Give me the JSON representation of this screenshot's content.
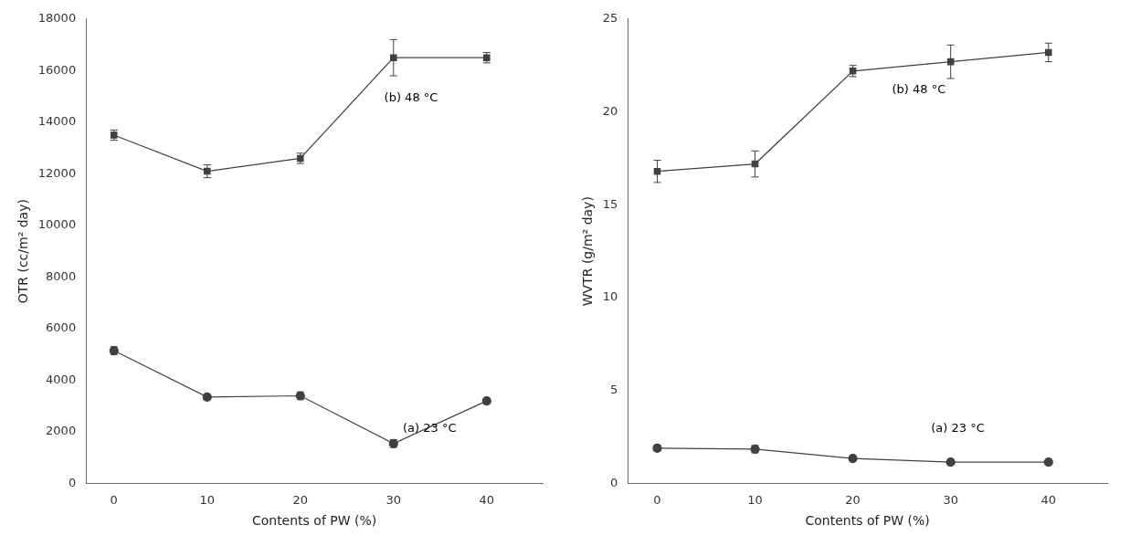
{
  "chart_data": [
    {
      "type": "line",
      "x_label": "Contents of PW (%)",
      "y_label": "OTR (cc/m² day)",
      "x": [
        0,
        10,
        20,
        30,
        40
      ],
      "series": [
        {
          "color": "#404040",
          "marker": "square",
          "line_style": "solid",
          "values": [
            13500,
            12100,
            12600,
            16500,
            16500
          ],
          "errors": [
            200,
            250,
            200,
            700,
            200
          ]
        },
        {
          "color": "#404040",
          "marker": "circle",
          "line_style": "solid",
          "values": [
            5150,
            3350,
            3400,
            1550,
            3200
          ],
          "errors": [
            150,
            100,
            150,
            150,
            100
          ]
        }
      ],
      "xlim": [
        -3,
        46
      ],
      "xticks": [
        0,
        10,
        20,
        30,
        40
      ],
      "ylim": [
        0,
        18000
      ],
      "yticks": [
        0,
        2000,
        4000,
        6000,
        8000,
        10000,
        12000,
        14000,
        16000,
        18000
      ],
      "grid": false,
      "annotations": [
        {
          "text": "(b) 48 °C",
          "x": 29,
          "y": 14800
        },
        {
          "text": "(a) 23 °C",
          "x": 31,
          "y": 2000
        }
      ]
    },
    {
      "type": "line",
      "x_label": "Contents of PW (%)",
      "y_label": "WVTR (g/m² day)",
      "x": [
        0,
        10,
        20,
        30,
        40
      ],
      "series": [
        {
          "color": "#404040",
          "marker": "square",
          "line_style": "solid",
          "values": [
            16.8,
            17.2,
            22.2,
            22.7,
            23.2
          ],
          "errors": [
            0.6,
            0.7,
            0.3,
            0.9,
            0.5
          ]
        },
        {
          "color": "#404040",
          "marker": "circle",
          "line_style": "solid",
          "values": [
            1.9,
            1.85,
            1.35,
            1.15,
            1.15
          ],
          "errors": [
            0.15,
            0.2,
            0.1,
            0.1,
            0.08
          ]
        }
      ],
      "xlim": [
        -3,
        46
      ],
      "xticks": [
        0,
        10,
        20,
        30,
        40
      ],
      "ylim": [
        0,
        25
      ],
      "yticks": [
        0,
        5,
        10,
        15,
        20,
        25
      ],
      "grid": false,
      "annotations": [
        {
          "text": "(b) 48 °C",
          "x": 24,
          "y": 21.0
        },
        {
          "text": "(a) 23 °C",
          "x": 28,
          "y": 2.8
        }
      ]
    }
  ]
}
